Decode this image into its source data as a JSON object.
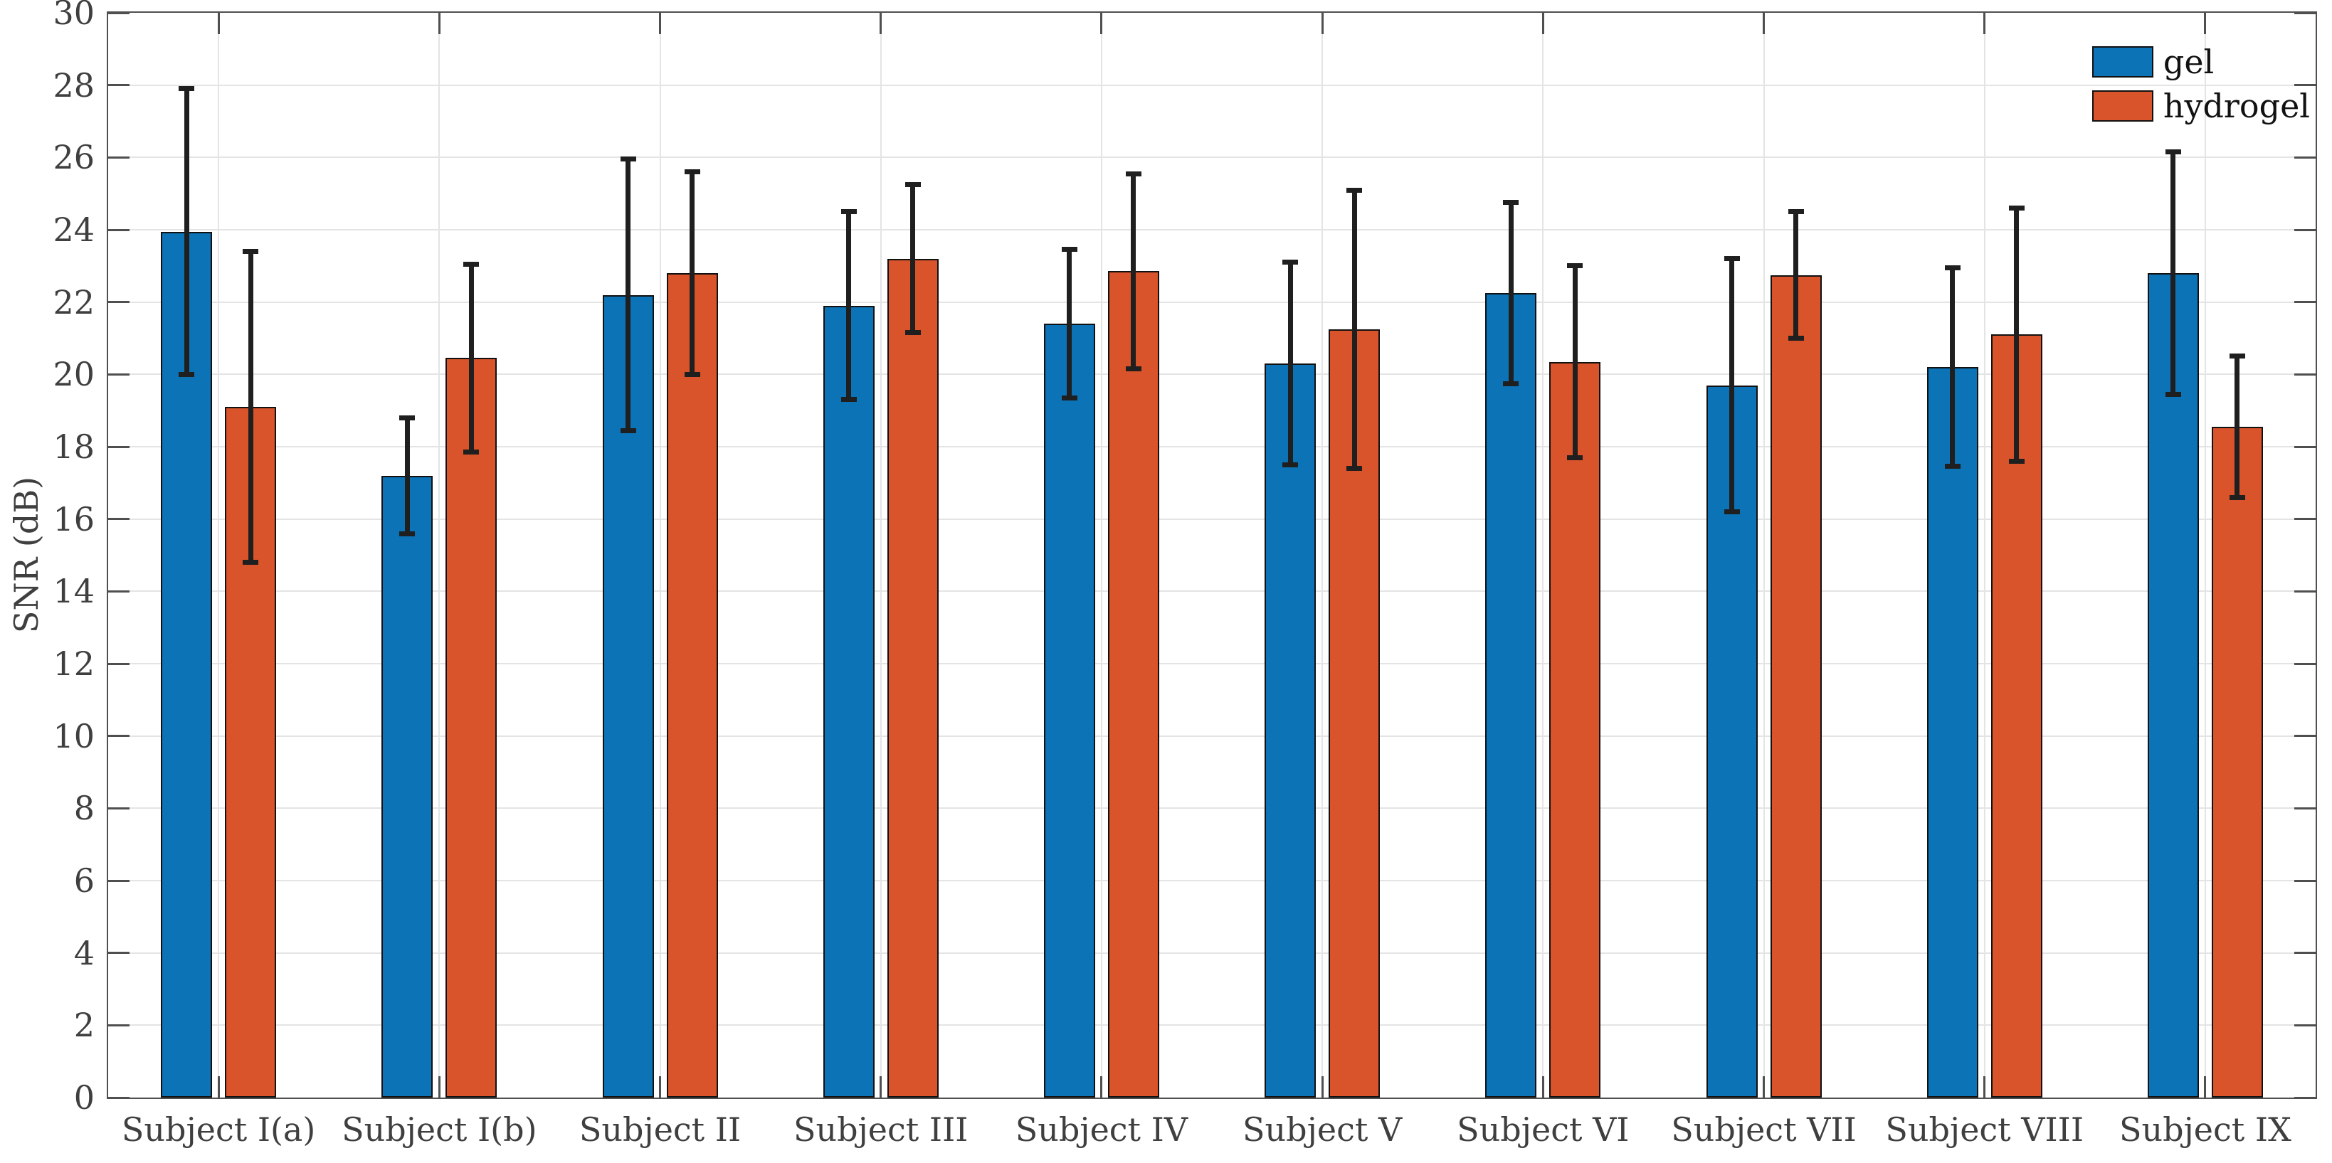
{
  "chart_data": {
    "type": "bar",
    "title": "",
    "xlabel": "",
    "ylabel": "SNR (dB)",
    "ylim": [
      0,
      30
    ],
    "yticks": [
      0,
      2,
      4,
      6,
      8,
      10,
      12,
      14,
      16,
      18,
      20,
      22,
      24,
      26,
      28,
      30
    ],
    "grid": true,
    "legend_position": "top-right-inside",
    "categories": [
      "Subject I(a)",
      "Subject I(b)",
      "Subject II",
      "Subject III",
      "Subject IV",
      "Subject V",
      "Subject VI",
      "Subject VII",
      "Subject VIII",
      "Subject IX"
    ],
    "series": [
      {
        "name": "gel",
        "color": "#0c73b7",
        "values": [
          23.95,
          17.2,
          22.2,
          21.9,
          21.4,
          20.3,
          22.25,
          19.7,
          20.2,
          22.8
        ],
        "error": [
          3.95,
          1.6,
          3.75,
          2.6,
          2.05,
          2.8,
          2.5,
          3.5,
          2.75,
          3.35
        ]
      },
      {
        "name": "hydrogel",
        "color": "#d9542a",
        "values": [
          19.1,
          20.45,
          22.8,
          23.2,
          22.85,
          21.25,
          20.35,
          22.75,
          21.1,
          18.55
        ],
        "error": [
          4.3,
          2.6,
          2.8,
          2.05,
          2.7,
          3.85,
          2.65,
          1.75,
          3.5,
          1.95
        ]
      }
    ]
  },
  "style_colors": {
    "axis": "#4f4f4f",
    "grid": "#e4e4e4",
    "error_bar": "#1f1f1f",
    "bar_edge": "#111111",
    "tick_text": "#3f3f3f",
    "background": "#ffffff"
  }
}
